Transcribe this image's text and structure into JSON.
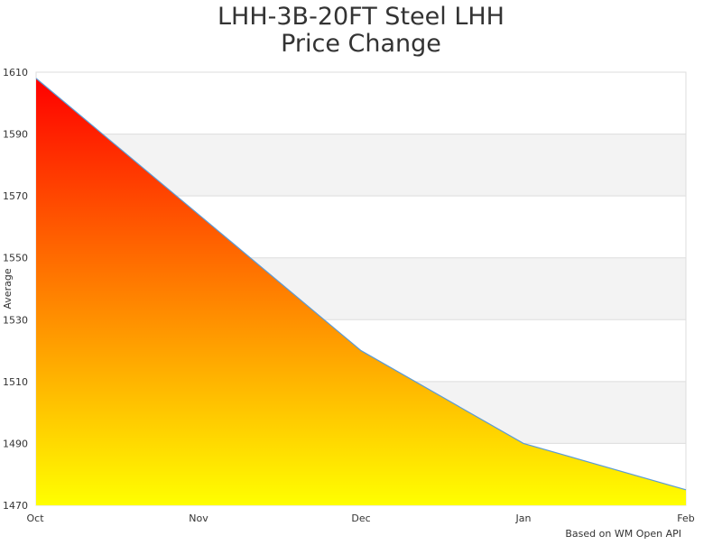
{
  "chart_data": {
    "type": "area",
    "title_line1": "LHH-3B-20FT Steel LHH",
    "title_line2": "Price Change",
    "xlabel": "",
    "ylabel": "Average",
    "categories": [
      "Oct",
      "Nov",
      "Dec",
      "Jan",
      "Feb"
    ],
    "values": [
      1608,
      1564,
      1520,
      1490,
      1475
    ],
    "ylim": [
      1470,
      1610
    ],
    "yticks": [
      1470,
      1490,
      1510,
      1530,
      1550,
      1570,
      1590,
      1610
    ],
    "grid": true,
    "alternating_bands": true,
    "gradient_colors": {
      "top": "#ff0000",
      "bottom": "#ffff00"
    },
    "line_color": "#5b9bd5",
    "band_color": "#f3f3f3",
    "credit": "Based on WM Open API"
  }
}
